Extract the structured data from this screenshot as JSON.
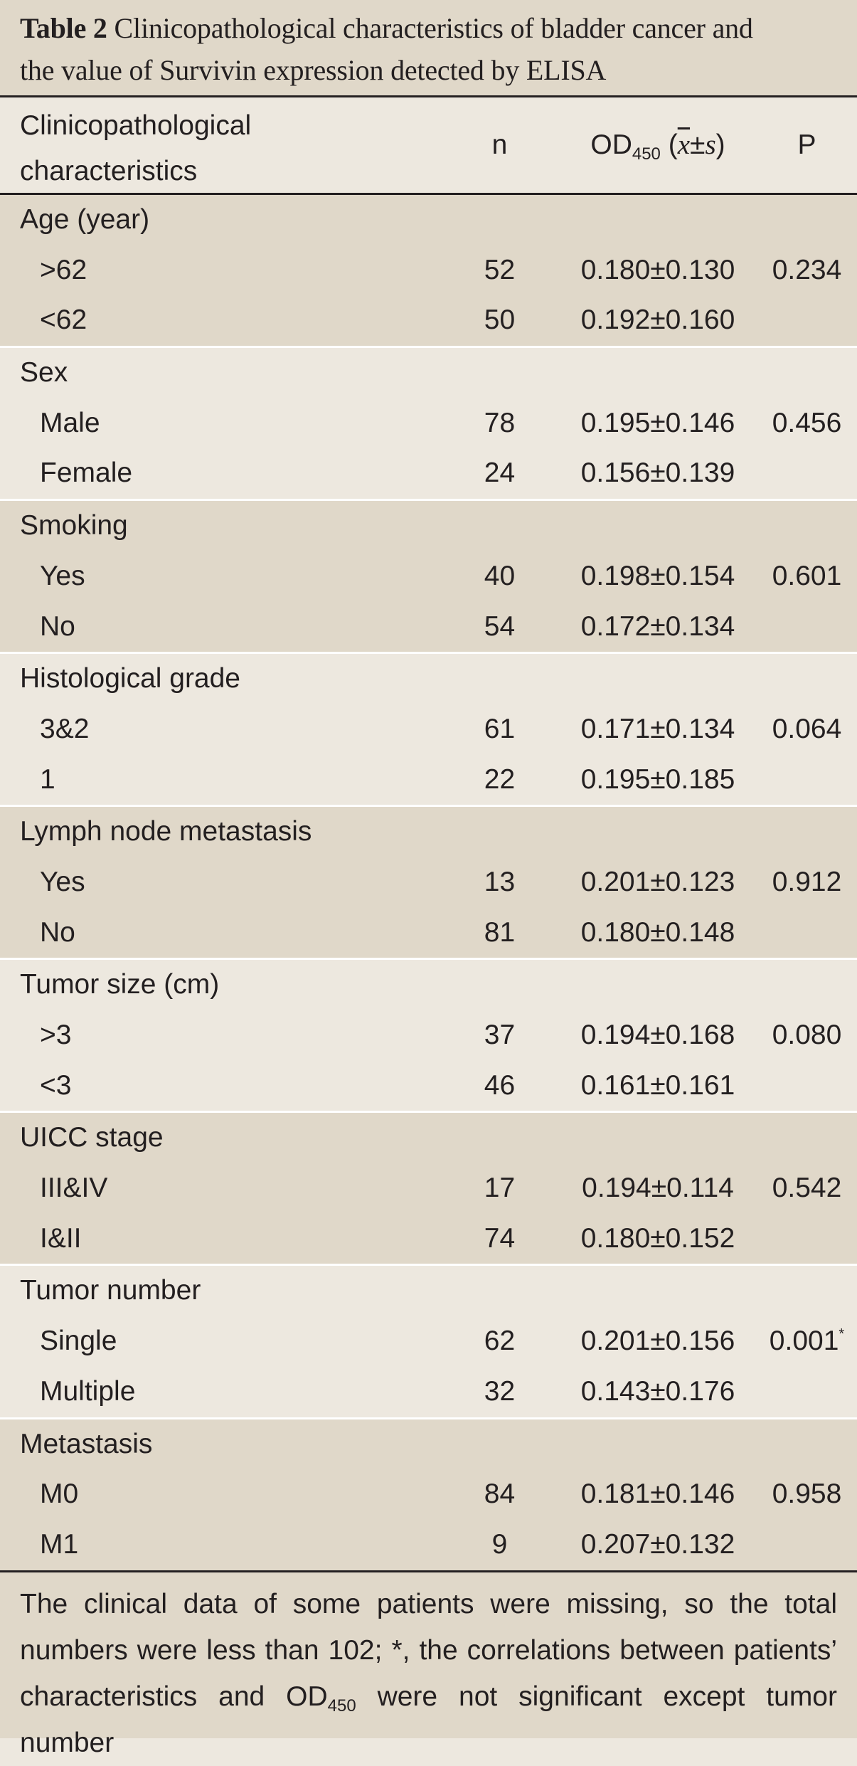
{
  "caption": {
    "label": "Table 2",
    "text_line1": "Clinicopathological characteristics of bladder cancer and",
    "text_line2": "the value of Survivin expression detected by ELISA"
  },
  "header": {
    "col1_line1": "Clinicopathological",
    "col1_line2": "characteristics",
    "n": "n",
    "od_main": "OD",
    "od_sub": "450",
    "od_open": " (",
    "od_xbar": "x",
    "od_pm": "±",
    "od_s": "s",
    "od_close": ")",
    "p": "P"
  },
  "groups": [
    {
      "name": "Age (year)",
      "rows": [
        {
          "label": ">62",
          "n": "52",
          "od": "0.180±0.130",
          "p": "0.234",
          "mark": ""
        },
        {
          "label": "<62",
          "n": "50",
          "od": "0.192±0.160",
          "p": "",
          "mark": ""
        }
      ]
    },
    {
      "name": "Sex",
      "rows": [
        {
          "label": "Male",
          "n": "78",
          "od": "0.195±0.146",
          "p": "0.456",
          "mark": ""
        },
        {
          "label": "Female",
          "n": "24",
          "od": "0.156±0.139",
          "p": "",
          "mark": ""
        }
      ]
    },
    {
      "name": "Smoking",
      "rows": [
        {
          "label": "Yes",
          "n": "40",
          "od": "0.198±0.154",
          "p": "0.601",
          "mark": ""
        },
        {
          "label": "No",
          "n": "54",
          "od": "0.172±0.134",
          "p": "",
          "mark": ""
        }
      ]
    },
    {
      "name": "Histological grade",
      "rows": [
        {
          "label": "3&2",
          "n": "61",
          "od": "0.171±0.134",
          "p": "0.064",
          "mark": ""
        },
        {
          "label": "1",
          "n": "22",
          "od": "0.195±0.185",
          "p": "",
          "mark": ""
        }
      ]
    },
    {
      "name": "Lymph node metastasis",
      "rows": [
        {
          "label": "Yes",
          "n": "13",
          "od": "0.201±0.123",
          "p": "0.912",
          "mark": ""
        },
        {
          "label": "No",
          "n": "81",
          "od": "0.180±0.148",
          "p": "",
          "mark": ""
        }
      ]
    },
    {
      "name": "Tumor size (cm)",
      "rows": [
        {
          "label": ">3",
          "n": "37",
          "od": "0.194±0.168",
          "p": "0.080",
          "mark": ""
        },
        {
          "label": "<3",
          "n": "46",
          "od": "0.161±0.161",
          "p": "",
          "mark": ""
        }
      ]
    },
    {
      "name": "UICC stage",
      "rows": [
        {
          "label": "III&IV",
          "n": "17",
          "od": "0.194±0.114",
          "p": "0.542",
          "mark": ""
        },
        {
          "label": "I&II",
          "n": "74",
          "od": "0.180±0.152",
          "p": "",
          "mark": ""
        }
      ]
    },
    {
      "name": "Tumor number",
      "rows": [
        {
          "label": "Single",
          "n": "62",
          "od": "0.201±0.156",
          "p": "0.001",
          "mark": "*"
        },
        {
          "label": "Multiple",
          "n": "32",
          "od": "0.143±0.176",
          "p": "",
          "mark": ""
        }
      ]
    },
    {
      "name": "Metastasis",
      "rows": [
        {
          "label": "M0",
          "n": "84",
          "od": "0.181±0.146",
          "p": "0.958",
          "mark": ""
        },
        {
          "label": "M1",
          "n": "9",
          "od": "0.207±0.132",
          "p": "",
          "mark": ""
        }
      ]
    }
  ],
  "footnote": {
    "part1": "The clinical data of some patients were missing, so the total numbers were less than 102; *, the correlations between patients’ characteristics and OD",
    "sub": "450",
    "part2": " were not significant except tumor number"
  }
}
